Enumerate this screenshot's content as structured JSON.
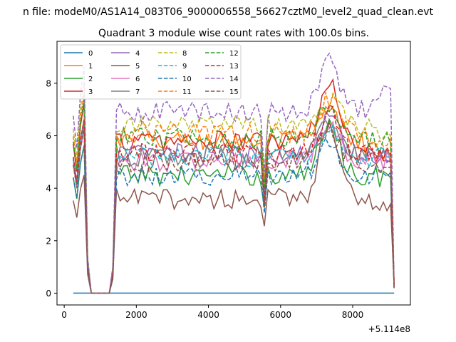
{
  "chart_data": {
    "type": "line",
    "suptitle": "n file: modeM0/AS1A14_083T06_9000006558_56627cztM0_level2_quad_clean.evt",
    "title": "Quadrant 3 module wise count rates with 100.0s bins.",
    "xlabel": "",
    "ylabel": "",
    "x_offset_label": "+5.114e8",
    "xlim": [
      -200,
      9600
    ],
    "ylim": [
      -0.45,
      9.6
    ],
    "x_ticks": [
      0,
      2000,
      4000,
      6000,
      8000
    ],
    "x_tick_labels": [
      "0",
      "2000",
      "4000",
      "6000",
      "8000"
    ],
    "y_ticks": [
      0,
      2,
      4,
      6,
      8
    ],
    "y_tick_labels": [
      "0",
      "2",
      "4",
      "6",
      "8"
    ],
    "grid": false,
    "legend_location": "top-left",
    "legend_columns": 4,
    "x_range": {
      "start": 250,
      "end": 9150,
      "step": 100
    },
    "gap": {
      "start": 750,
      "end": 1250
    },
    "series": [
      {
        "name": "0",
        "color": "#1f77b4",
        "style": "solid",
        "level": 0.0,
        "flat": true
      },
      {
        "name": "1",
        "color": "#ff7f0e",
        "style": "solid",
        "level": 5.8,
        "peak": 6.9,
        "end": 5.2
      },
      {
        "name": "2",
        "color": "#2ca02c",
        "style": "solid",
        "level": 4.5,
        "peak": 6.6,
        "end": 4.4
      },
      {
        "name": "3",
        "color": "#d62728",
        "style": "solid",
        "level": 5.8,
        "peak": 7.9,
        "end": 5.0
      },
      {
        "name": "4",
        "color": "#9467bd",
        "style": "solid",
        "level": 5.3,
        "peak": 6.8,
        "end": 5.1
      },
      {
        "name": "5",
        "color": "#8c564b",
        "style": "solid",
        "level": 3.6,
        "peak": 6.6,
        "end": 3.4
      },
      {
        "name": "6",
        "color": "#e377c2",
        "style": "solid",
        "level": 5.0,
        "peak": 6.4,
        "end": 5.0
      },
      {
        "name": "7",
        "color": "#7f7f7f",
        "style": "solid",
        "level": 5.2,
        "peak": 6.5,
        "end": 5.2
      },
      {
        "name": "8",
        "color": "#bcbd22",
        "style": "dashed",
        "level": 6.4,
        "peak": 7.3,
        "end": 6.0
      },
      {
        "name": "9",
        "color": "#17becf",
        "style": "dashed",
        "level": 5.2,
        "peak": 6.4,
        "end": 5.2
      },
      {
        "name": "10",
        "color": "#1f77b4",
        "style": "dashed",
        "level": 4.5,
        "peak": 5.9,
        "end": 4.6
      },
      {
        "name": "11",
        "color": "#ff7f0e",
        "style": "dashed",
        "level": 6.1,
        "peak": 7.4,
        "end": 5.9
      },
      {
        "name": "12",
        "color": "#2ca02c",
        "style": "dashed",
        "level": 5.9,
        "peak": 7.3,
        "end": 5.7
      },
      {
        "name": "13",
        "color": "#d62728",
        "style": "dashed",
        "level": 5.3,
        "peak": 6.8,
        "end": 5.3
      },
      {
        "name": "14",
        "color": "#9467bd",
        "style": "dashed",
        "level": 6.9,
        "peak": 8.8,
        "end": 7.8
      },
      {
        "name": "15",
        "color": "#8c564b",
        "style": "dashed",
        "level": 5.0,
        "peak": 6.3,
        "end": 4.8
      }
    ]
  }
}
